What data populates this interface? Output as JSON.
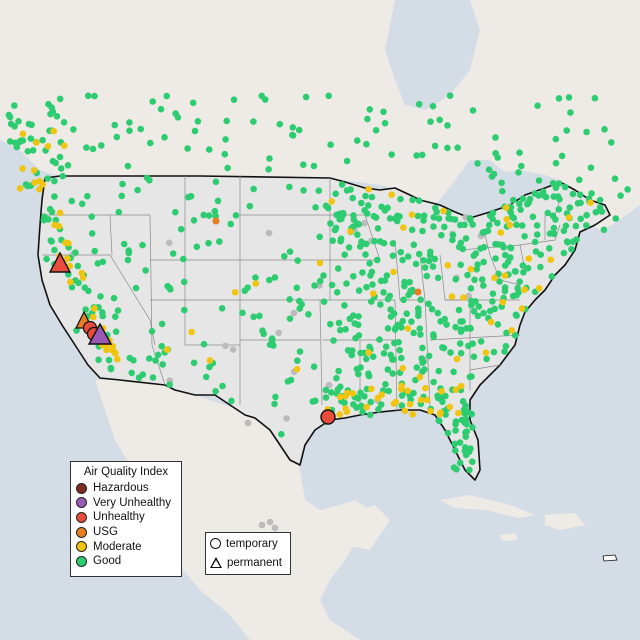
{
  "legend_aqi": {
    "title": "Air Quality Index",
    "items": [
      {
        "label": "Hazardous",
        "color": "#7e2b22"
      },
      {
        "label": "Very Unhealthy",
        "color": "#9b59b6"
      },
      {
        "label": "Unhealthy",
        "color": "#e74c3c"
      },
      {
        "label": "USG",
        "color": "#e67e22"
      },
      {
        "label": "Moderate",
        "color": "#f1c40f"
      },
      {
        "label": "Good",
        "color": "#2ecc71"
      }
    ]
  },
  "legend_type": {
    "items": [
      {
        "label": "temporary",
        "shape": "circle"
      },
      {
        "label": "permanent",
        "shape": "triangle"
      }
    ]
  },
  "colors": {
    "water": "#d4dde6",
    "land": "#efeae6",
    "us_land": "#e8e8e8",
    "border": "#111111",
    "state_line": "#8a8a8a",
    "nodata": "#bbbbbb"
  }
}
